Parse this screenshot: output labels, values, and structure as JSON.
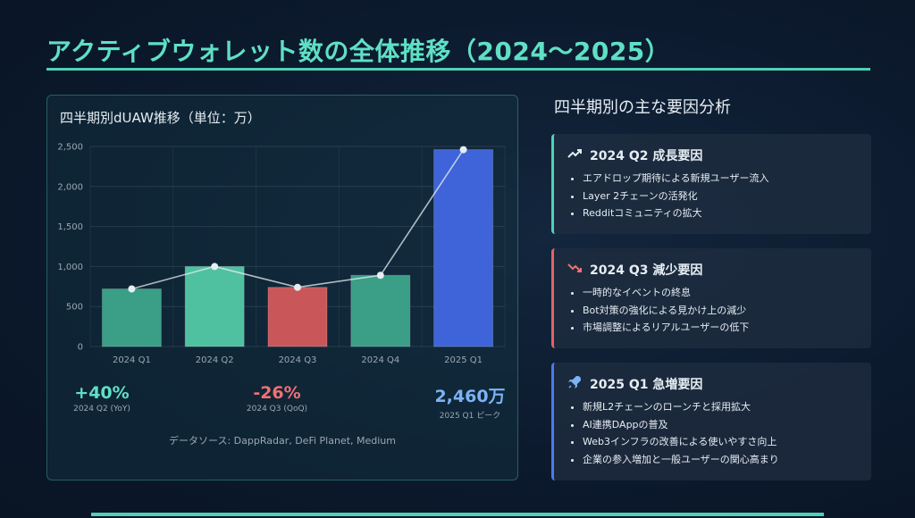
{
  "page": {
    "title": "アクティブウォレット数の全体推移（2024〜2025）"
  },
  "chart_panel": {
    "title": "四半期別dUAW推移（単位：万）",
    "source": "データソース: DappRadar, DeFi Planet, Medium"
  },
  "chart_data": {
    "type": "bar",
    "title": "四半期別dUAW推移（単位：万）",
    "categories": [
      "2024 Q1",
      "2024 Q2",
      "2024 Q3",
      "2024 Q4",
      "2025 Q1"
    ],
    "values": [
      720,
      1000,
      740,
      890,
      2460
    ],
    "line_values": [
      720,
      1000,
      740,
      890,
      2460
    ],
    "bar_colors": [
      "#3b9e86",
      "#4fc1a0",
      "#c9575a",
      "#3b9e86",
      "#3f63d8"
    ],
    "ylim": [
      0,
      2500
    ],
    "yticks": [
      "0",
      "500",
      "1,000",
      "1,500",
      "2,000",
      "2,500"
    ],
    "ytick_values": [
      0,
      500,
      1000,
      1500,
      2000,
      2500
    ],
    "grid": true
  },
  "stats": [
    {
      "value": "+40%",
      "label": "2024 Q2 (YoY)",
      "color": "#5fe0c5"
    },
    {
      "value": "-26%",
      "label": "2024 Q3 (QoQ)",
      "color": "#f07171"
    },
    {
      "value": "2,460万",
      "label": "2025 Q1 ピーク",
      "color": "#7cb3f5"
    }
  ],
  "analysis": {
    "title": "四半期別の主な要因分析",
    "cards": [
      {
        "icon": "trending-up-icon",
        "title": "2024 Q2 成長要因",
        "border_color": "#4fd1b5",
        "items": [
          "エアドロップ期待による新規ユーザー流入",
          "Layer 2チェーンの活発化",
          "Redditコミュニティの拡大"
        ]
      },
      {
        "icon": "trending-down-icon",
        "title": "2024 Q3 減少要因",
        "border_color": "#e06464",
        "items": [
          "一時的なイベントの終息",
          "Bot対策の強化による見かけ上の減少",
          "市場調整によるリアルユーザーの低下"
        ]
      },
      {
        "icon": "rocket-icon",
        "title": "2025 Q1 急増要因",
        "border_color": "#4a7bea",
        "items": [
          "新規L2チェーンのローンチと採用拡大",
          "AI連携DAppの普及",
          "Web3インフラの改善による使いやすさ向上",
          "企業の参入増加と一般ユーザーの関心高まり"
        ]
      }
    ]
  }
}
